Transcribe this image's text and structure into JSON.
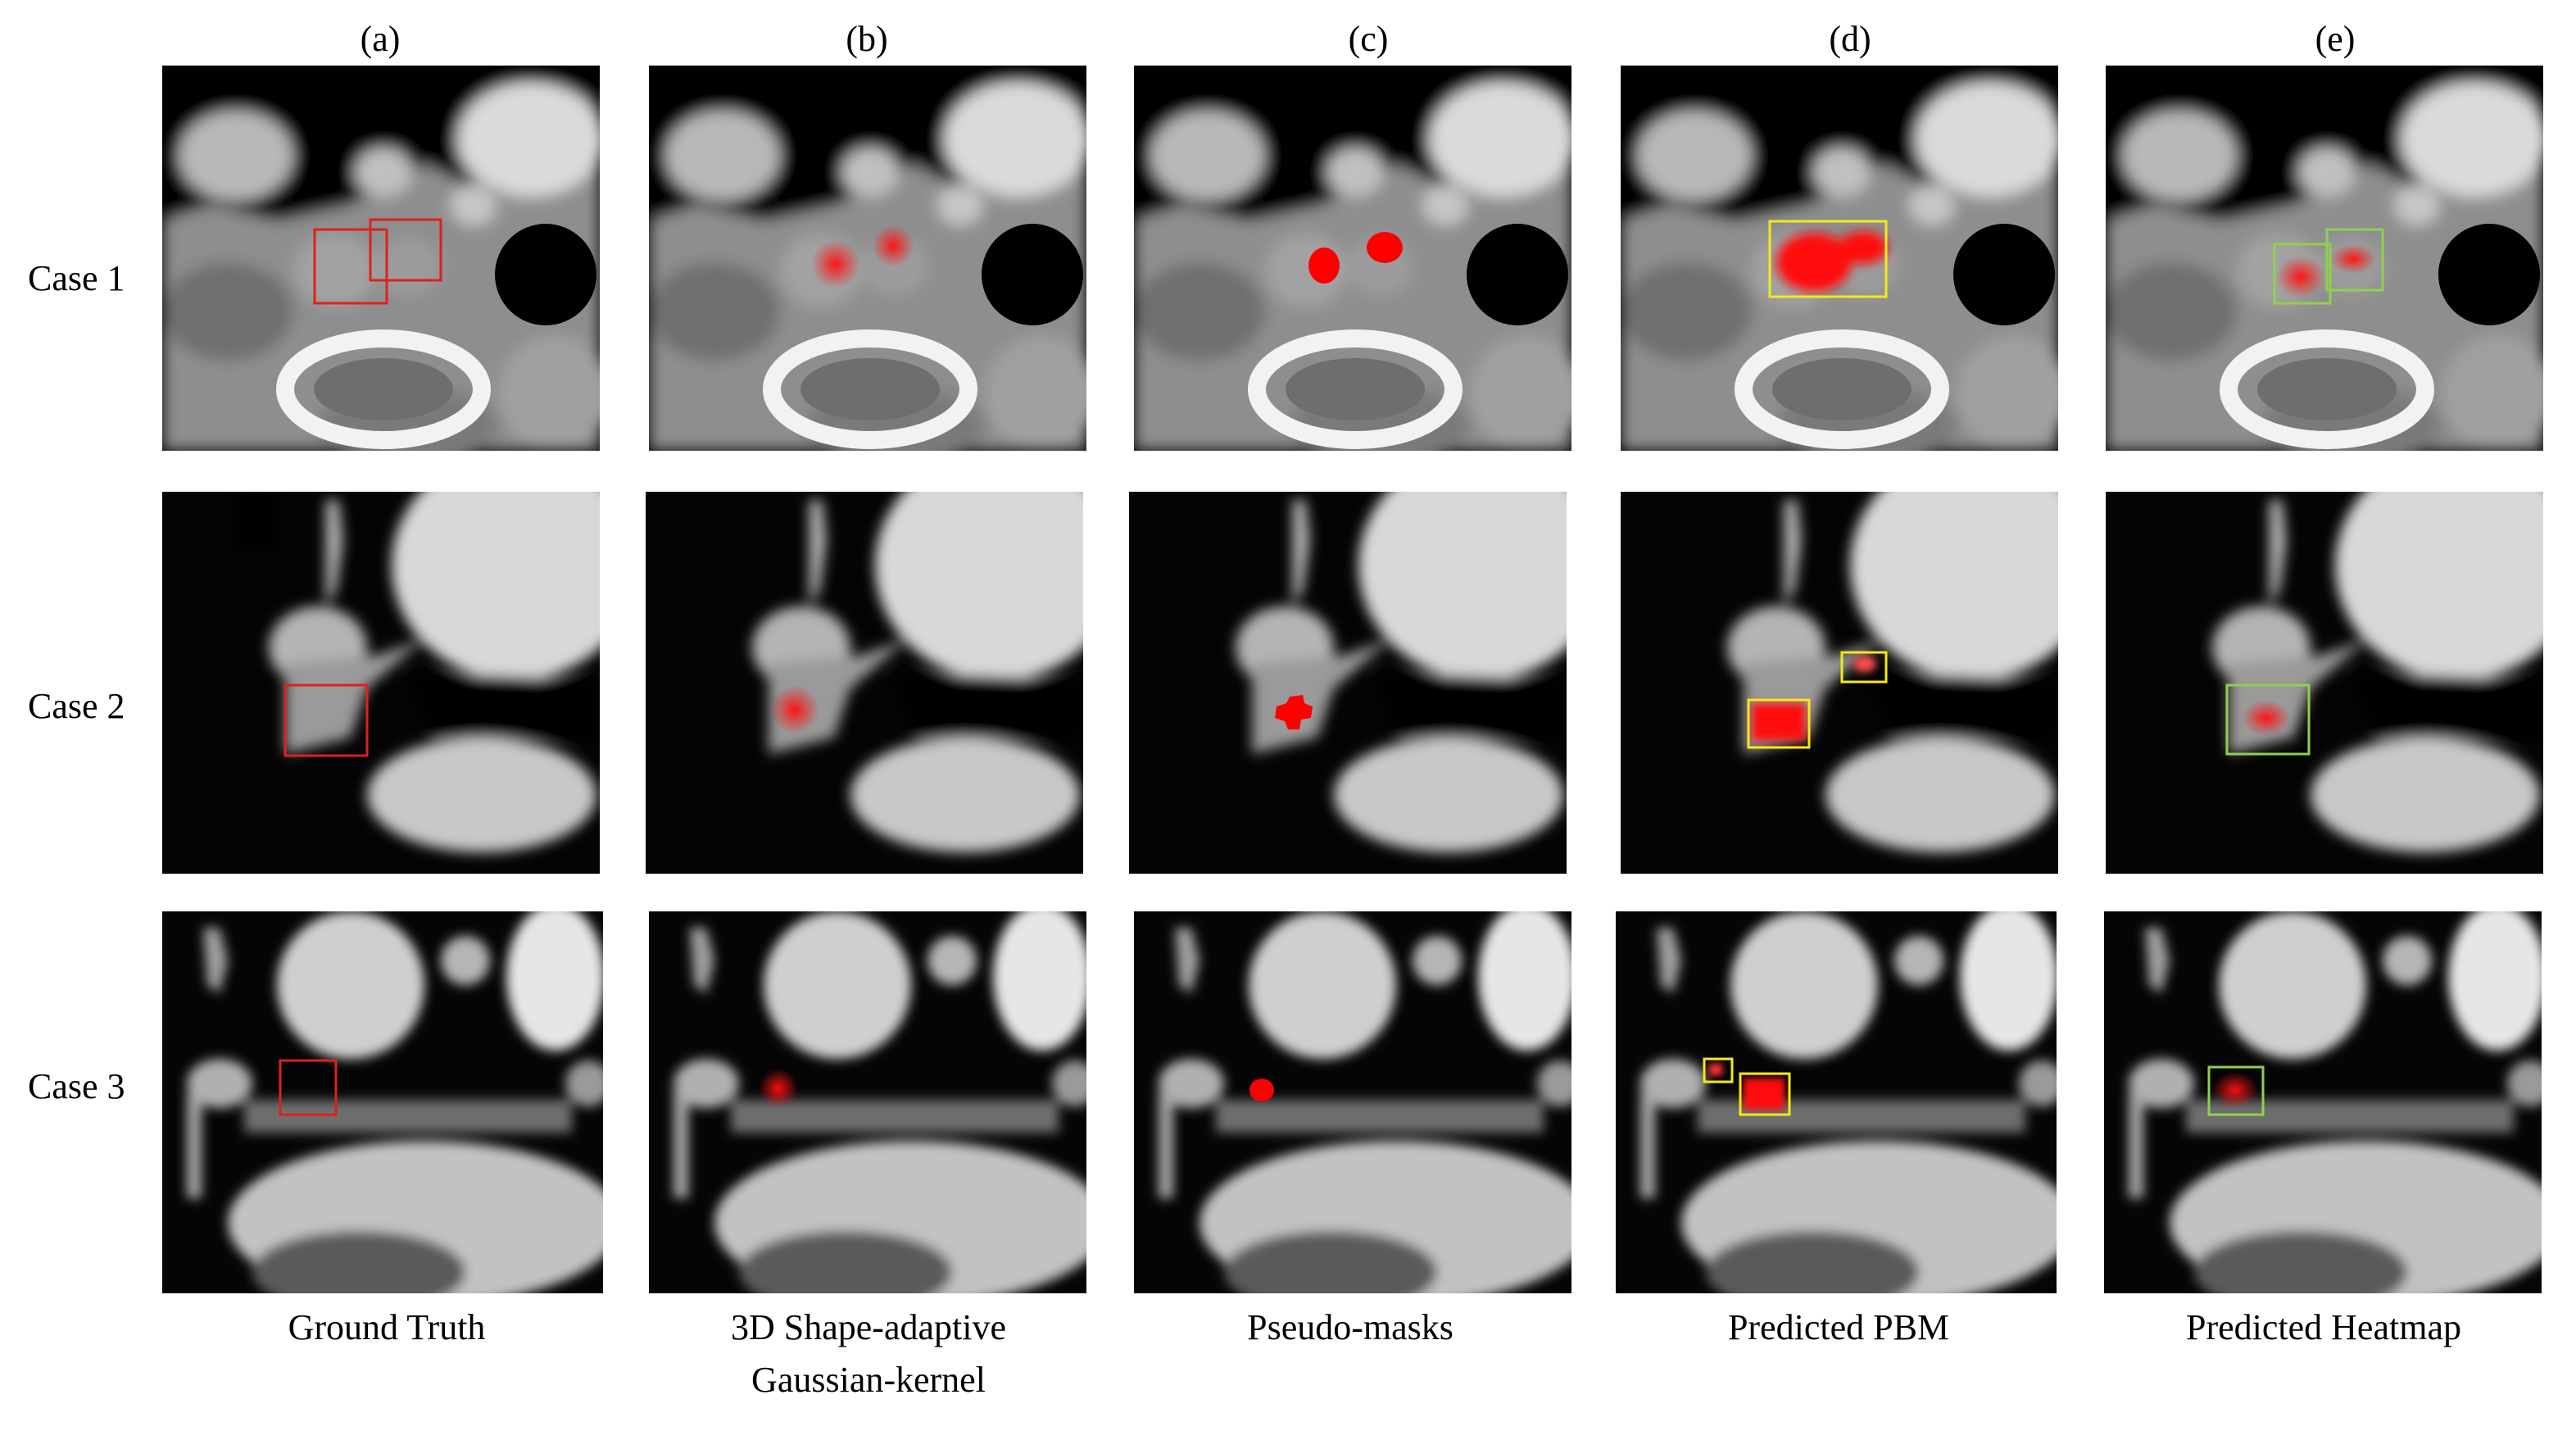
{
  "figure": {
    "columns": [
      {
        "id": "a",
        "header": "(a)",
        "caption_lines": [
          "Ground Truth"
        ]
      },
      {
        "id": "b",
        "header": "(b)",
        "caption_lines": [
          "3D Shape-adaptive",
          "Gaussian-kernel"
        ]
      },
      {
        "id": "c",
        "header": "(c)",
        "caption_lines": [
          "Pseudo-masks"
        ]
      },
      {
        "id": "d",
        "header": "(d)",
        "caption_lines": [
          "Predicted PBM"
        ]
      },
      {
        "id": "e",
        "header": "(e)",
        "caption_lines": [
          "Predicted Heatmap"
        ]
      }
    ],
    "rows": [
      {
        "id": "case1",
        "label": "Case 1"
      },
      {
        "id": "case2",
        "label": "Case 2"
      },
      {
        "id": "case3",
        "label": "Case 3"
      }
    ],
    "colors": {
      "ground_truth_box": "#e0201c",
      "pbm_box": "#f2ea1a",
      "heatmap_box": "#8fd14f",
      "overlay_red": "#ff1010"
    }
  }
}
